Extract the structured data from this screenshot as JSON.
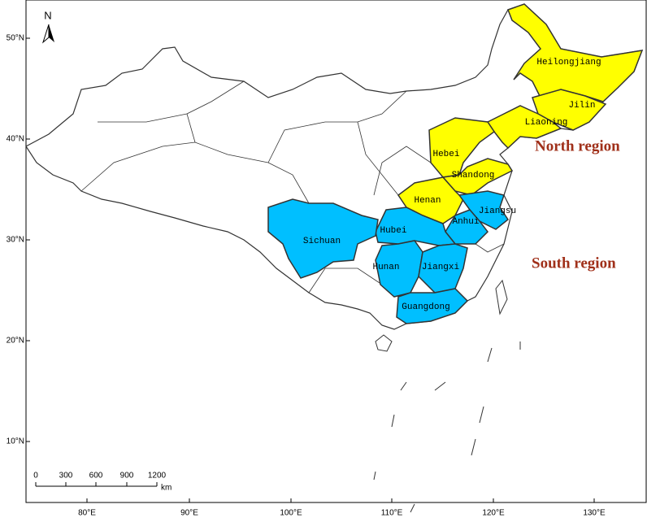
{
  "map": {
    "north_arrow": "N",
    "graticule": {
      "latitudes": [
        "50°N",
        "40°N",
        "30°N",
        "20°N",
        "10°N"
      ],
      "longitudes": [
        "80°E",
        "90°E",
        "100°E",
        "110°E",
        "120°E",
        "130°E"
      ]
    },
    "regions": [
      {
        "label": "North region",
        "color": "#ffff00",
        "provinces": [
          "Heilongjiang",
          "Jilin",
          "Liaoning",
          "Hebei",
          "Shandong",
          "Henan"
        ]
      },
      {
        "label": "South region",
        "color": "#00bfff",
        "provinces": [
          "Jiangsu",
          "Anhui",
          "Hubei",
          "Sichuan",
          "Hunan",
          "Jiangxi",
          "Guangdong"
        ]
      }
    ],
    "scale_bar": {
      "ticks": [
        "0",
        "300",
        "600",
        "900",
        "1200"
      ],
      "unit": "km"
    }
  }
}
